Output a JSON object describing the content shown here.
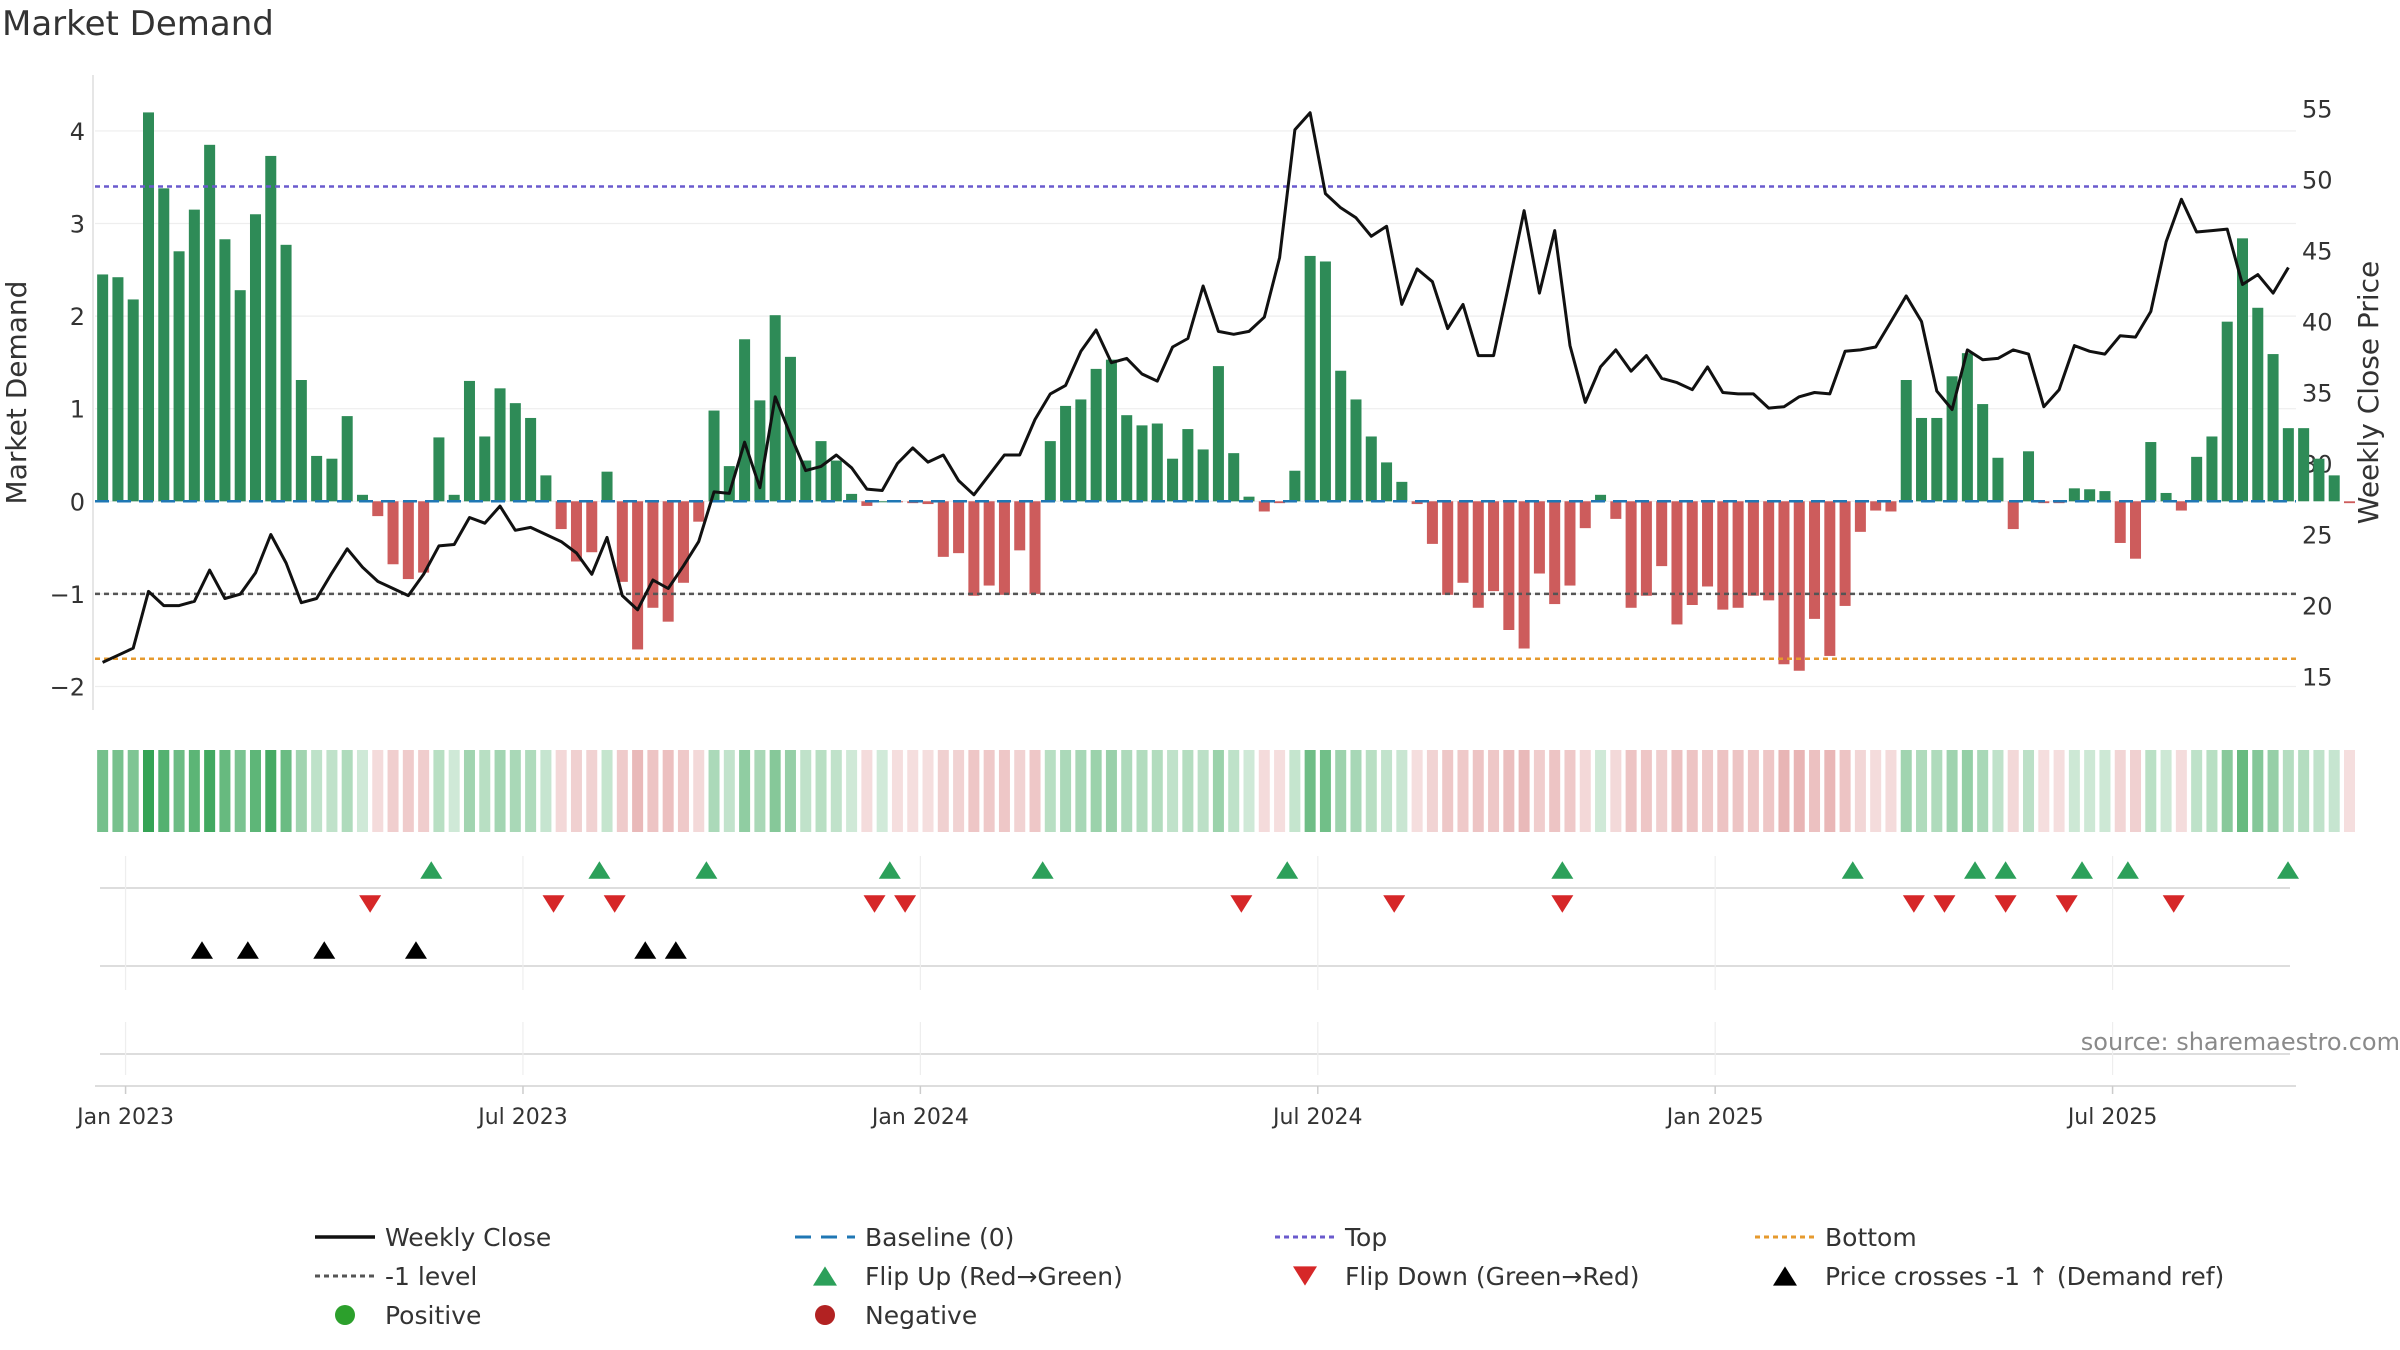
{
  "chart_data": {
    "type": "bar",
    "title": "Market Demand",
    "ylabel": "Market Demand",
    "ylabel_right": "Weekly Close Price",
    "ylim": [
      -2.2,
      4.55
    ],
    "ylim_right": [
      13.0,
      57.0
    ],
    "yticks": [
      "−2",
      "−1",
      "0",
      "1",
      "2",
      "3",
      "4"
    ],
    "yticks_values": [
      -2,
      -1,
      0,
      1,
      2,
      3,
      4
    ],
    "yticks_right": [
      "15",
      "20",
      "25",
      "30",
      "35",
      "40",
      "45",
      "50",
      "55"
    ],
    "yticks_right_values": [
      15,
      20,
      25,
      30,
      35,
      40,
      45,
      50,
      55
    ],
    "x_start": "2022-12-26",
    "weeks": 144,
    "xtick_labels": [
      "Jan 2023",
      "Jul 2023",
      "Jan 2024",
      "Jul 2024",
      "Jan 2025",
      "Jul 2025"
    ],
    "xtick_weeks": [
      2,
      28,
      54,
      80,
      106,
      132
    ],
    "top_level": 3.4,
    "bottom_level": -1.7,
    "minus_one_level": -1.0,
    "demand": [
      2.45,
      2.42,
      2.18,
      4.2,
      3.38,
      2.7,
      3.15,
      3.85,
      2.83,
      2.28,
      3.1,
      3.73,
      2.77,
      1.31,
      0.49,
      0.46,
      0.92,
      0.07,
      -0.16,
      -0.68,
      -0.84,
      -0.77,
      0.69,
      0.07,
      1.3,
      0.7,
      1.22,
      1.06,
      0.9,
      0.28,
      -0.3,
      -0.65,
      -0.55,
      0.32,
      -0.87,
      -1.6,
      -1.15,
      -1.3,
      -0.88,
      -0.22,
      0.98,
      0.38,
      1.75,
      1.09,
      2.01,
      1.56,
      0.44,
      0.65,
      0.44,
      0.08,
      -0.05,
      0.0,
      -0.01,
      -0.02,
      -0.03,
      -0.6,
      -0.56,
      -1.02,
      -0.91,
      -1.01,
      -0.53,
      -1.0,
      0.65,
      1.03,
      1.1,
      1.43,
      1.53,
      0.93,
      0.82,
      0.84,
      0.46,
      0.78,
      0.56,
      1.46,
      0.52,
      0.05,
      -0.11,
      -0.02,
      0.33,
      2.65,
      2.59,
      1.41,
      1.1,
      0.7,
      0.42,
      0.21,
      -0.03,
      -0.46,
      -1.01,
      -0.88,
      -1.15,
      -0.97,
      -1.39,
      -1.59,
      -0.78,
      -1.11,
      -0.91,
      -0.29,
      0.07,
      -0.19,
      -1.15,
      -1.02,
      -0.7,
      -1.33,
      -1.12,
      -0.92,
      -1.17,
      -1.15,
      -1.02,
      -1.07,
      -1.76,
      -1.83,
      -1.27,
      -1.67,
      -1.13,
      -0.33,
      -0.1,
      -0.11,
      1.31,
      0.9,
      0.9,
      1.35,
      1.6,
      1.05,
      0.47,
      -0.3,
      0.54,
      -0.02,
      -0.02,
      0.14,
      0.13,
      0.11,
      -0.45,
      -0.62,
      0.64,
      0.09,
      -0.1,
      0.48,
      0.7,
      1.94,
      2.84,
      2.09,
      1.59,
      0.79,
      0.79,
      0.46,
      0.28,
      -0.02
    ],
    "price": [
      16.0,
      16.5,
      17.0,
      21.0,
      20.0,
      20.0,
      20.3,
      22.5,
      20.5,
      20.8,
      22.3,
      25.0,
      23.0,
      20.2,
      20.5,
      22.3,
      24.0,
      22.7,
      21.7,
      21.2,
      20.7,
      22.2,
      24.2,
      24.3,
      26.2,
      25.8,
      27.0,
      25.3,
      25.5,
      25.0,
      24.5,
      23.7,
      22.2,
      24.8,
      20.7,
      19.7,
      21.8,
      21.2,
      22.8,
      24.5,
      28.0,
      27.9,
      31.5,
      28.3,
      34.7,
      32.0,
      29.5,
      29.8,
      30.6,
      29.7,
      28.2,
      28.1,
      30.0,
      31.1,
      30.1,
      30.6,
      28.8,
      27.8,
      29.2,
      30.6,
      30.6,
      33.1,
      34.9,
      35.5,
      37.9,
      39.4,
      37.1,
      37.4,
      36.3,
      35.8,
      38.2,
      38.8,
      42.5,
      39.3,
      39.1,
      39.3,
      40.3,
      44.5,
      53.5,
      54.7,
      49.0,
      48.0,
      47.3,
      46.0,
      46.7,
      41.2,
      43.7,
      42.8,
      39.5,
      41.2,
      37.6,
      37.6,
      42.6,
      47.8,
      42.0,
      46.4,
      38.3,
      34.3,
      36.8,
      38.0,
      36.5,
      37.6,
      36.0,
      35.7,
      35.2,
      36.8,
      35.0,
      34.9,
      34.9,
      33.9,
      34.0,
      34.7,
      35.0,
      34.9,
      37.9,
      38.0,
      38.2,
      40.0,
      41.8,
      40.0,
      35.1,
      33.8,
      38.0,
      37.3,
      37.4,
      38.0,
      37.7,
      34.0,
      35.2,
      38.3,
      37.9,
      37.7,
      39.0,
      38.9,
      40.7,
      45.6,
      48.6,
      46.3,
      46.4,
      46.5,
      42.6,
      43.3,
      42.0,
      43.8
    ],
    "flip_up_weeks": [
      22,
      33,
      40,
      52,
      62,
      78,
      96,
      115,
      123,
      125,
      130,
      133,
      144
    ],
    "flip_down_weeks": [
      18,
      30,
      34,
      51,
      53,
      75,
      85,
      96,
      119,
      121,
      125,
      129,
      136
    ],
    "price_cross_weeks": [
      7,
      10,
      15,
      21,
      36,
      38
    ],
    "source": "source: sharemaestro.com",
    "legend": [
      {
        "label": "Weekly Close",
        "kind": "line",
        "color": "#111111"
      },
      {
        "label": "Baseline (0)",
        "kind": "dash",
        "color": "#1f77b4"
      },
      {
        "label": "Top",
        "kind": "dot",
        "color": "#6a5acd"
      },
      {
        "label": "Bottom",
        "kind": "dot",
        "color": "#e69a2e"
      },
      {
        "label": "-1 level",
        "kind": "dot",
        "color": "#555555"
      },
      {
        "label": "Flip Up (Red→Green)",
        "kind": "tri-up",
        "color": "#2ca05a"
      },
      {
        "label": "Flip Down (Green→Red)",
        "kind": "tri-down",
        "color": "#d62728"
      },
      {
        "label": "Price crosses -1 ↑ (Demand ref)",
        "kind": "tri-up",
        "color": "#000000"
      },
      {
        "label": "Positive",
        "kind": "circle",
        "color": "#2ca02c"
      },
      {
        "label": "Negative",
        "kind": "circle",
        "color": "#b22222"
      }
    ],
    "colors": {
      "positive_bar": "#2e8b57",
      "negative_bar": "#cd5c5c",
      "price_line": "#111111",
      "baseline": "#1f77b4",
      "top": "#6a5acd",
      "bottom": "#e69a2e",
      "minus_one": "#555555",
      "flip_up": "#2ca05a",
      "flip_down": "#d62728",
      "price_cross": "#000000",
      "source_text": "#8a8a8a"
    }
  }
}
